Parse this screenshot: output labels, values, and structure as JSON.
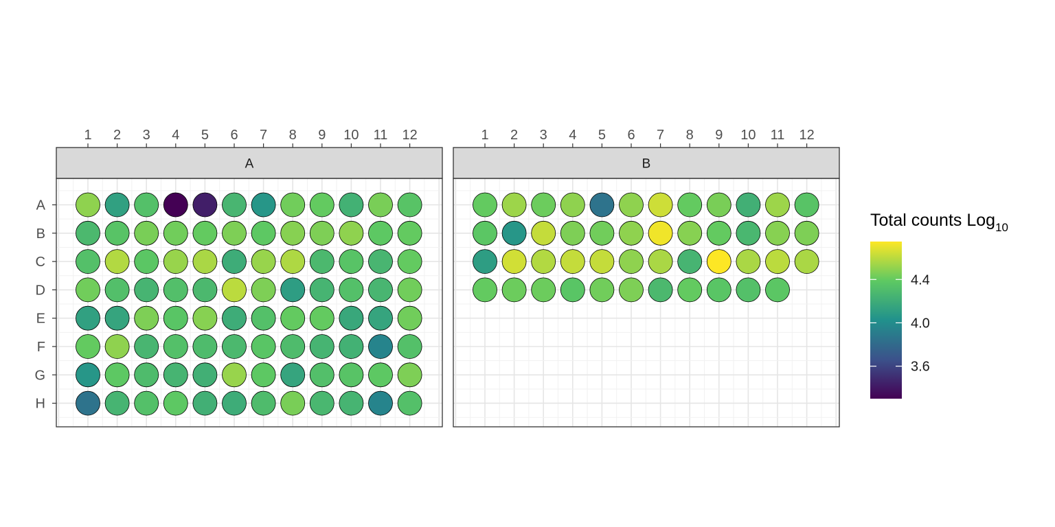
{
  "chart_data": {
    "type": "heatmap",
    "subtype": "plate-map",
    "colormap": "viridis",
    "colormap_stops": [
      "#440154",
      "#3b528b",
      "#21918c",
      "#5ec962",
      "#fde725"
    ],
    "color_range": [
      3.3,
      4.75
    ],
    "border_color": "#000000",
    "grid": true,
    "rows": [
      "A",
      "B",
      "C",
      "D",
      "E",
      "F",
      "G",
      "H"
    ],
    "columns": [
      "1",
      "2",
      "3",
      "4",
      "5",
      "6",
      "7",
      "8",
      "9",
      "10",
      "11",
      "12"
    ],
    "legend": {
      "title": "Total counts Log",
      "title_subscript": "10",
      "ticks": [
        "3.6",
        "4.0",
        "4.4"
      ],
      "tick_values": [
        3.6,
        4.0,
        4.4
      ],
      "position": "right"
    },
    "panels": [
      {
        "label": "A",
        "values": [
          [
            4.5,
            4.12,
            4.33,
            3.3,
            3.43,
            4.26,
            4.06,
            4.43,
            4.4,
            4.23,
            4.45,
            4.35
          ],
          [
            4.28,
            4.35,
            4.45,
            4.43,
            4.4,
            4.46,
            4.38,
            4.48,
            4.46,
            4.5,
            4.38,
            4.4
          ],
          [
            4.33,
            4.58,
            4.37,
            4.52,
            4.56,
            4.2,
            4.52,
            4.57,
            4.28,
            4.35,
            4.26,
            4.4
          ],
          [
            4.43,
            4.32,
            4.25,
            4.32,
            4.28,
            4.6,
            4.46,
            4.1,
            4.25,
            4.33,
            4.26,
            4.43
          ],
          [
            4.12,
            4.15,
            4.46,
            4.36,
            4.48,
            4.2,
            4.33,
            4.4,
            4.4,
            4.17,
            4.15,
            4.43
          ],
          [
            4.4,
            4.5,
            4.26,
            4.33,
            4.3,
            4.28,
            4.36,
            4.3,
            4.25,
            4.23,
            3.95,
            4.33
          ],
          [
            4.06,
            4.38,
            4.3,
            4.25,
            4.22,
            4.52,
            4.38,
            4.15,
            4.32,
            4.35,
            4.38,
            4.46
          ],
          [
            3.85,
            4.25,
            4.33,
            4.38,
            4.22,
            4.2,
            4.3,
            4.45,
            4.27,
            4.25,
            3.95,
            4.33
          ]
        ]
      },
      {
        "label": "B",
        "values": [
          [
            4.4,
            4.53,
            4.42,
            4.5,
            3.85,
            4.5,
            4.64,
            4.4,
            4.45,
            4.22,
            4.53,
            4.35
          ],
          [
            4.37,
            4.06,
            4.62,
            4.46,
            4.43,
            4.5,
            4.72,
            4.48,
            4.4,
            4.27,
            4.48,
            4.46
          ],
          [
            4.1,
            4.65,
            4.58,
            4.62,
            4.62,
            4.5,
            4.56,
            4.25,
            4.75,
            4.56,
            4.6,
            4.56
          ],
          [
            4.4,
            4.42,
            4.42,
            4.36,
            4.43,
            4.46,
            4.28,
            4.4,
            4.36,
            4.33,
            4.37,
            null
          ],
          [
            null,
            null,
            null,
            null,
            null,
            null,
            null,
            null,
            null,
            null,
            null,
            null
          ],
          [
            null,
            null,
            null,
            null,
            null,
            null,
            null,
            null,
            null,
            null,
            null,
            null
          ],
          [
            null,
            null,
            null,
            null,
            null,
            null,
            null,
            null,
            null,
            null,
            null,
            null
          ],
          [
            null,
            null,
            null,
            null,
            null,
            null,
            null,
            null,
            null,
            null,
            null,
            null
          ]
        ]
      }
    ]
  }
}
